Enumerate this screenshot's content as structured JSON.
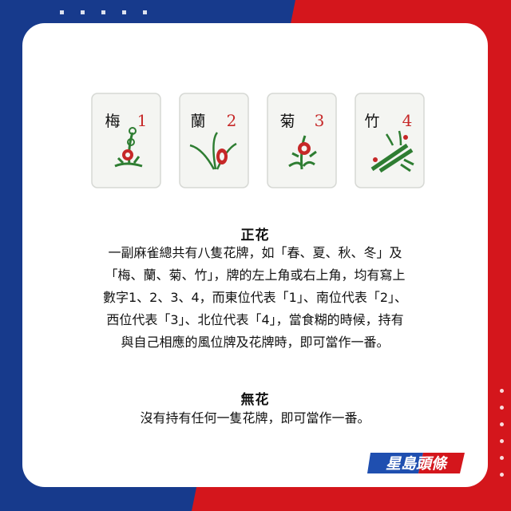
{
  "tiles": [
    {
      "char": "梅",
      "number": "1"
    },
    {
      "char": "蘭",
      "number": "2"
    },
    {
      "char": "菊",
      "number": "3"
    },
    {
      "char": "竹",
      "number": "4"
    }
  ],
  "section1": {
    "title": "正花",
    "lines": [
      "一副麻雀總共有八隻花牌，如「春、夏、秋、冬」及",
      "「梅、蘭、菊、竹」，牌的左上角或右上角，均有寫上",
      "數字1、2、3、4，而東位代表「1」、南位代表「2」、",
      "西位代表「3」、北位代表「4」，當食糊的時候，持有",
      "與自己相應的風位牌及花牌時，即可當作一番。"
    ]
  },
  "section2": {
    "title": "無花",
    "lines": [
      "沒有持有任何一隻花牌，即可當作一番。"
    ]
  },
  "logo": {
    "text": "星島頭條"
  },
  "colors": {
    "blue": "#173a8c",
    "red": "#d4161c",
    "tile_green": "#2e7d32",
    "tile_red": "#c62828"
  }
}
